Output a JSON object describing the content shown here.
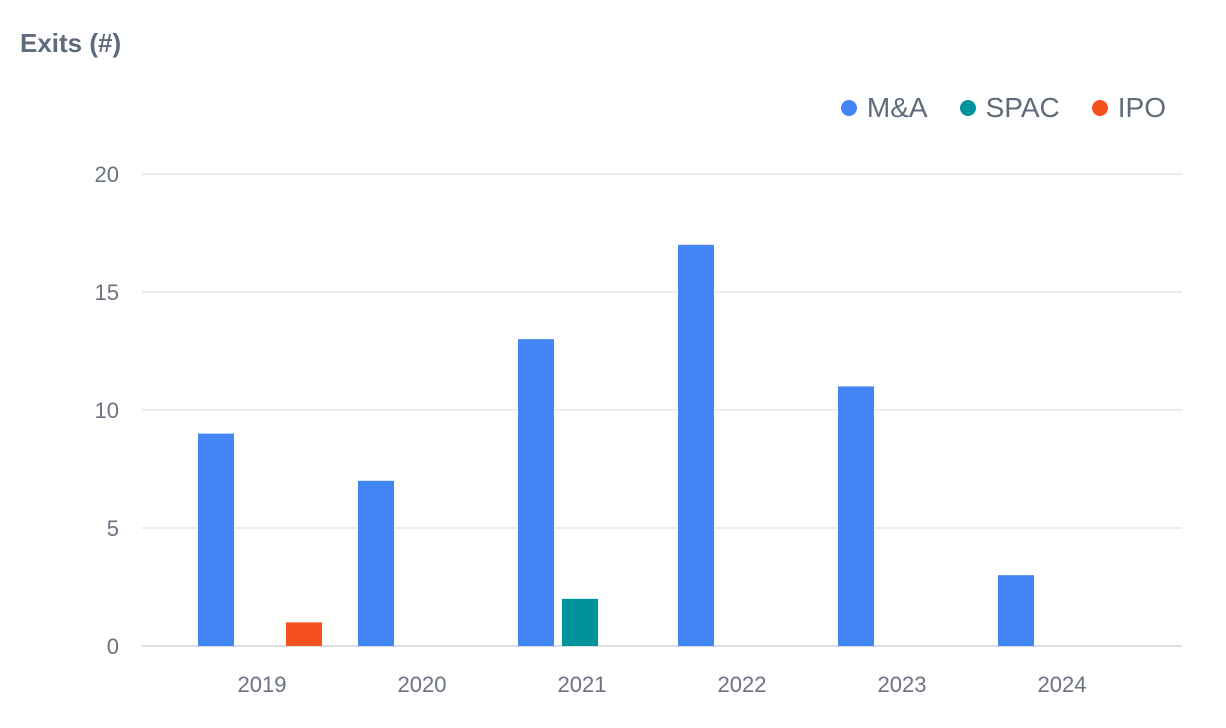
{
  "chart_data": {
    "type": "bar",
    "title": "Exits (#)",
    "xlabel": "",
    "ylabel": "",
    "categories": [
      "2019",
      "2020",
      "2021",
      "2022",
      "2023",
      "2024"
    ],
    "series": [
      {
        "name": "M&A",
        "color": "#4285F4",
        "values": [
          9,
          7,
          13,
          17,
          11,
          3
        ]
      },
      {
        "name": "SPAC",
        "color": "#00939C",
        "values": [
          0,
          0,
          2,
          0,
          0,
          0
        ]
      },
      {
        "name": "IPO",
        "color": "#F4511E",
        "values": [
          1,
          0,
          0,
          0,
          0,
          0
        ]
      }
    ],
    "ylim": [
      0,
      20
    ],
    "yticks": [
      0,
      5,
      10,
      15,
      20
    ],
    "grid": true,
    "legend_position": "top-right"
  }
}
